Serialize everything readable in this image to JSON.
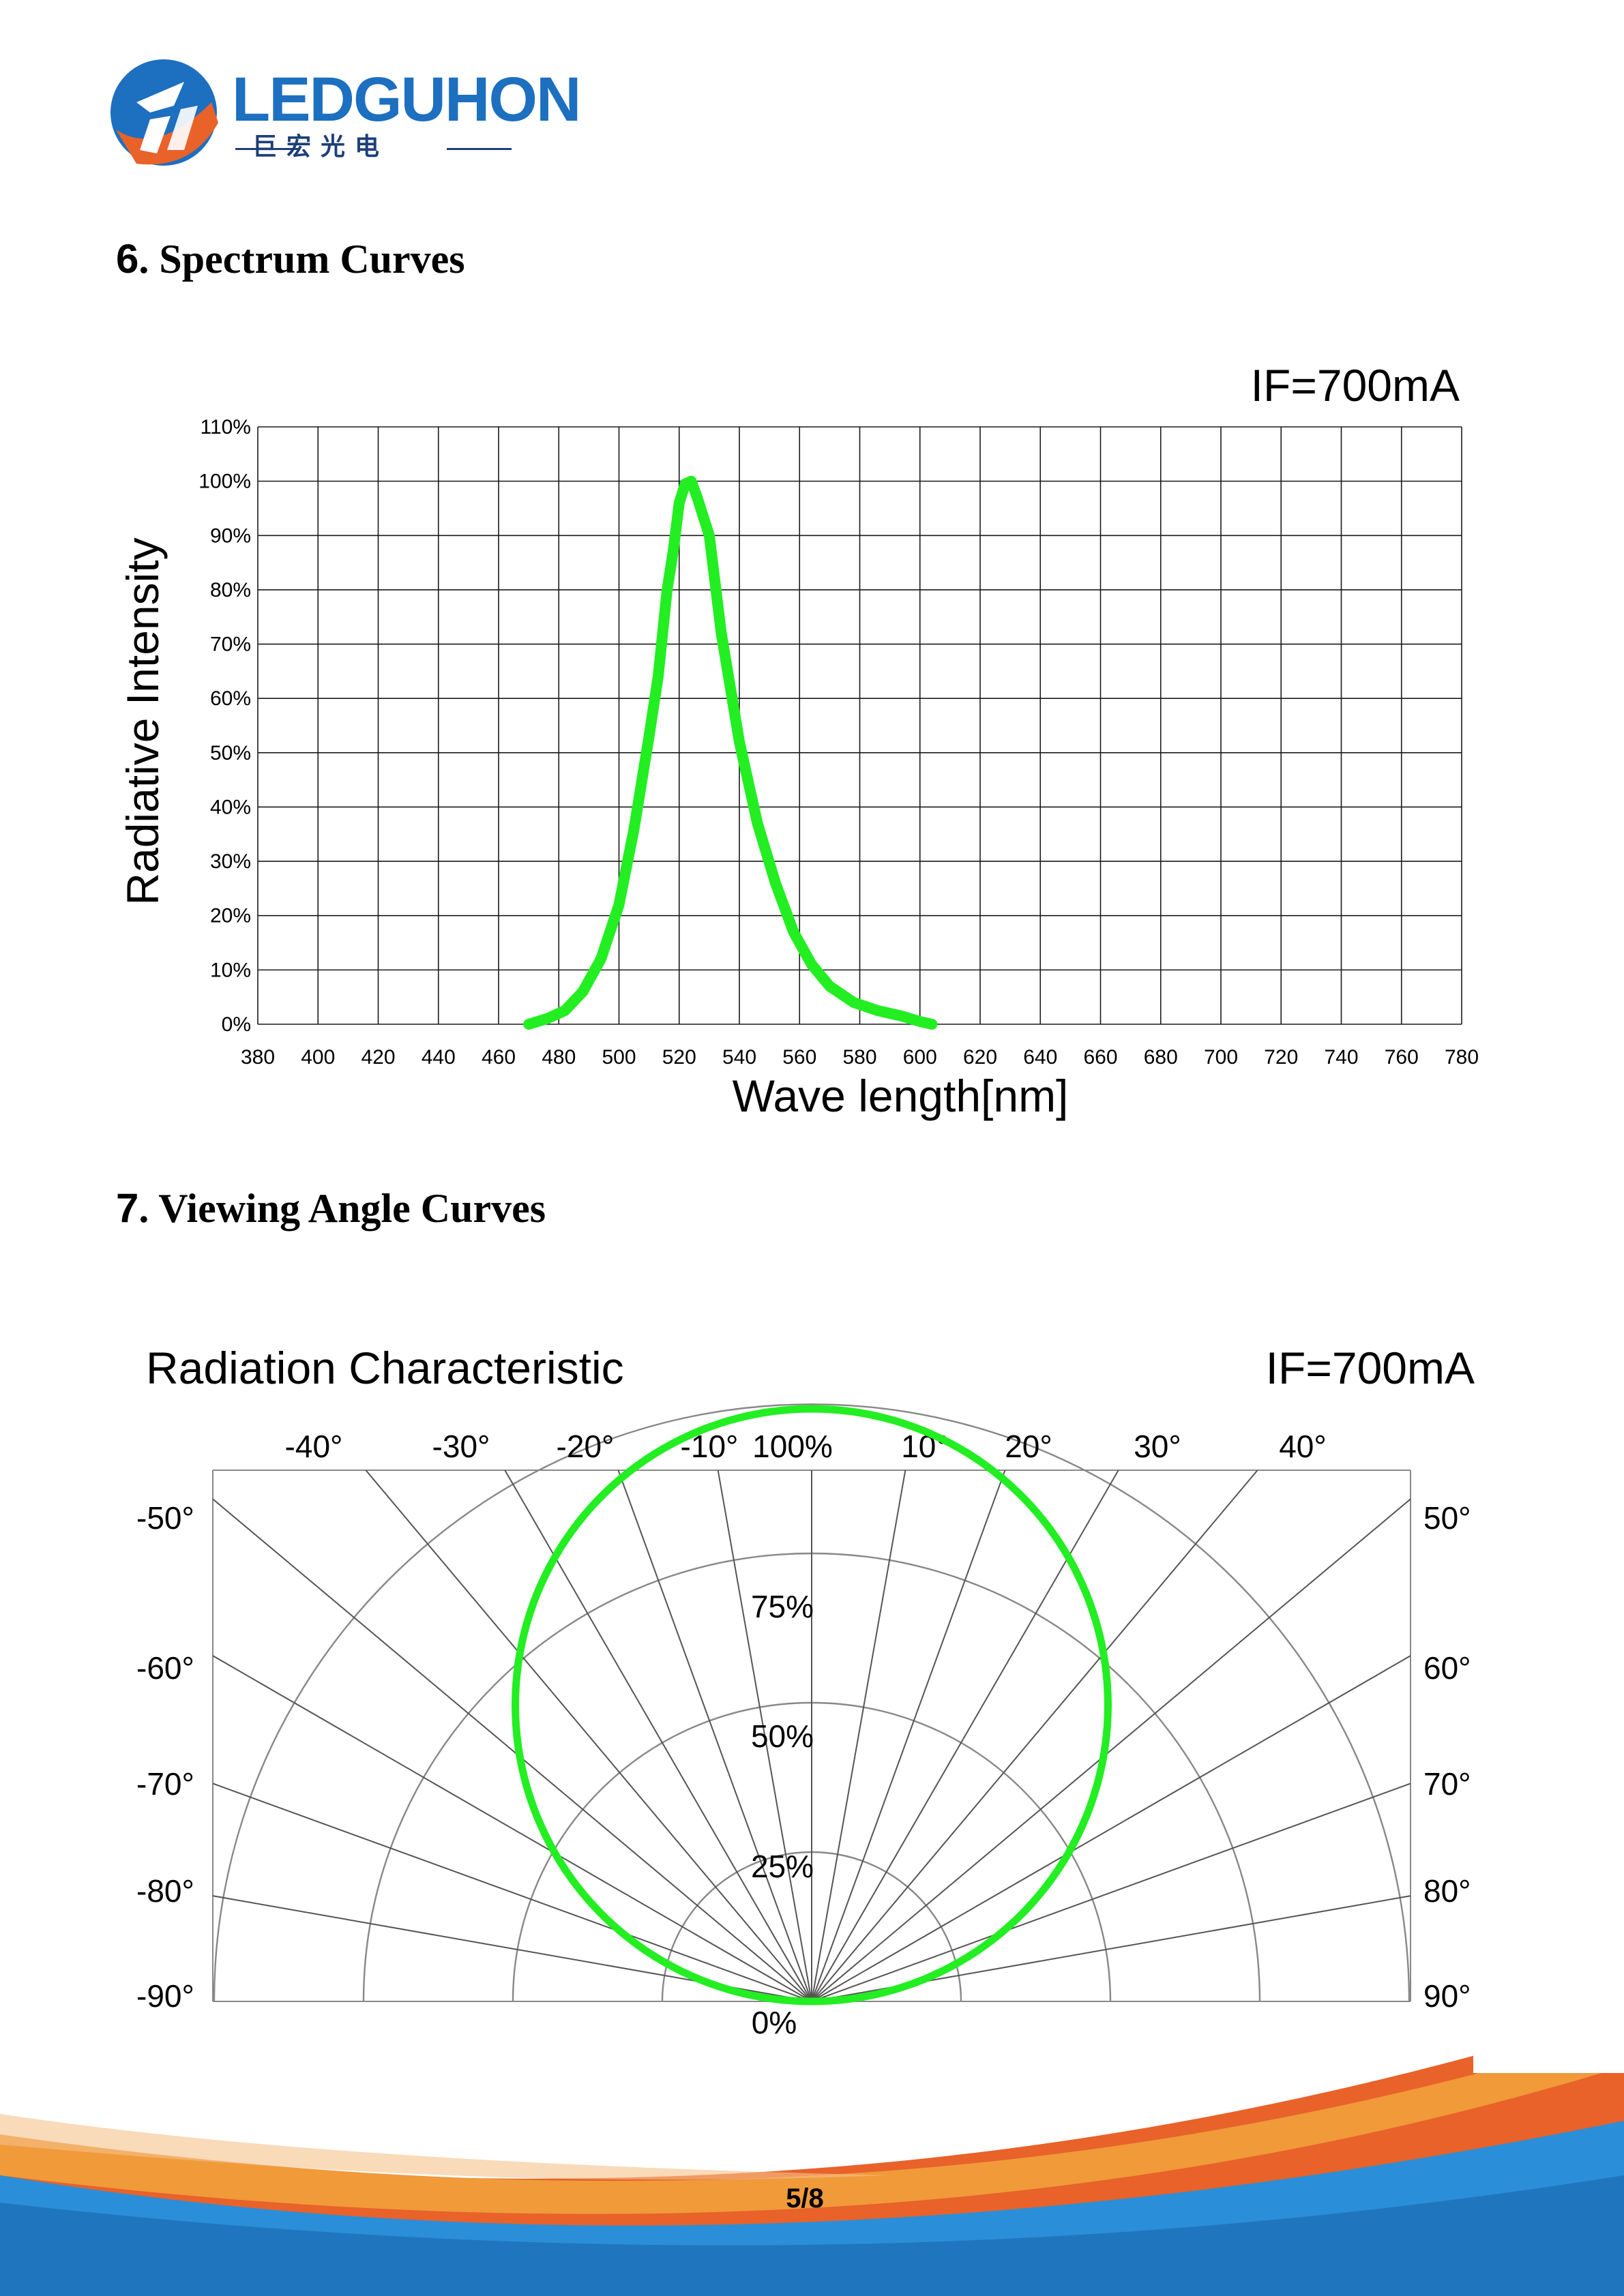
{
  "logo": {
    "name": "LEDGUHON",
    "subtitle": "巨宏光电"
  },
  "sections": [
    {
      "number": "6",
      "title": ". Spectrum Curves"
    },
    {
      "number": "7",
      "title": ". Viewing Angle Curves"
    }
  ],
  "colors": {
    "curve": "#22ee22",
    "grid": "#1a1a1a",
    "polar_grid": "#888888",
    "logo_blue": "#1d6fc0",
    "logo_orange": "#e8622a"
  },
  "chart_data": [
    {
      "type": "line",
      "condition": "IF=700mA",
      "xlabel": "Wave length[nm]",
      "ylabel": "Radiative Intensity",
      "xlim": [
        380,
        780
      ],
      "ylim": [
        0,
        110
      ],
      "xticks": [
        380,
        400,
        420,
        440,
        460,
        480,
        500,
        520,
        540,
        560,
        580,
        600,
        620,
        640,
        660,
        680,
        700,
        720,
        740,
        760,
        780
      ],
      "ytick_labels": [
        "0%",
        "10%",
        "20%",
        "30%",
        "40%",
        "50%",
        "60%",
        "70%",
        "80%",
        "90%",
        "100%",
        "110%"
      ],
      "grid": true,
      "series": [
        {
          "x": [
            470,
            476,
            482,
            488,
            494,
            500,
            505,
            510,
            513,
            516,
            518,
            520,
            522,
            524,
            526,
            530,
            534,
            540,
            546,
            552,
            558,
            564,
            570,
            578,
            586,
            594,
            600,
            604
          ],
          "y": [
            0,
            1,
            2.5,
            6,
            12,
            22,
            36,
            53,
            64,
            80,
            87,
            96,
            99.5,
            100,
            97,
            90,
            72,
            52,
            37,
            26,
            17,
            11,
            7,
            4,
            2.5,
            1.5,
            0.5,
            0
          ]
        }
      ]
    },
    {
      "type": "polar",
      "title": "Radiation Characteristic",
      "condition": "IF=700mA",
      "angle_labels_top": [
        "-40°",
        "-30°",
        "-20°",
        "-10°",
        "10°",
        "20°",
        "30°",
        "40°"
      ],
      "angle_labels_left": [
        "-50°",
        "-60°",
        "-70°",
        "-80°",
        "-90°"
      ],
      "angle_labels_right": [
        "50°",
        "60°",
        "70°",
        "80°",
        "90°"
      ],
      "radial_labels": [
        "0%",
        "25%",
        "50%",
        "75%",
        "100%"
      ],
      "series": [
        {
          "angle": [
            -90,
            -80,
            -70,
            -60,
            -50,
            -40,
            -30,
            -20,
            -10,
            0,
            10,
            20,
            30,
            40,
            50,
            60,
            70,
            80,
            90
          ],
          "intensity": [
            0,
            17.4,
            34.2,
            50,
            64.3,
            76.6,
            86.6,
            94,
            98.5,
            100,
            98.5,
            94,
            86.6,
            76.6,
            64.3,
            50,
            34.2,
            17.4,
            0
          ]
        }
      ]
    }
  ],
  "footer": {
    "page": "5/8"
  }
}
